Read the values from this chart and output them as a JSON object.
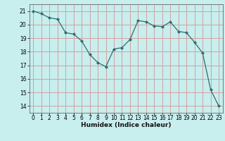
{
  "x": [
    0,
    1,
    2,
    3,
    4,
    5,
    6,
    7,
    8,
    9,
    10,
    11,
    12,
    13,
    14,
    15,
    16,
    17,
    18,
    19,
    20,
    21,
    22,
    23
  ],
  "y": [
    21.0,
    20.8,
    20.5,
    20.4,
    19.4,
    19.3,
    18.8,
    17.8,
    17.2,
    16.9,
    18.2,
    18.3,
    18.9,
    20.3,
    20.2,
    19.9,
    19.85,
    20.2,
    19.5,
    19.4,
    18.7,
    17.9,
    15.2,
    14.0
  ],
  "line_color": "#2d6e6e",
  "marker": "D",
  "marker_size": 2.0,
  "bg_color": "#c8eeee",
  "grid_color": "#d4a0a0",
  "xlabel": "Humidex (Indice chaleur)",
  "xlim": [
    -0.5,
    23.5
  ],
  "ylim": [
    13.5,
    21.5
  ],
  "yticks": [
    14,
    15,
    16,
    17,
    18,
    19,
    20,
    21
  ],
  "xticks": [
    0,
    1,
    2,
    3,
    4,
    5,
    6,
    7,
    8,
    9,
    10,
    11,
    12,
    13,
    14,
    15,
    16,
    17,
    18,
    19,
    20,
    21,
    22,
    23
  ],
  "label_fontsize": 6.5,
  "tick_fontsize": 5.5
}
